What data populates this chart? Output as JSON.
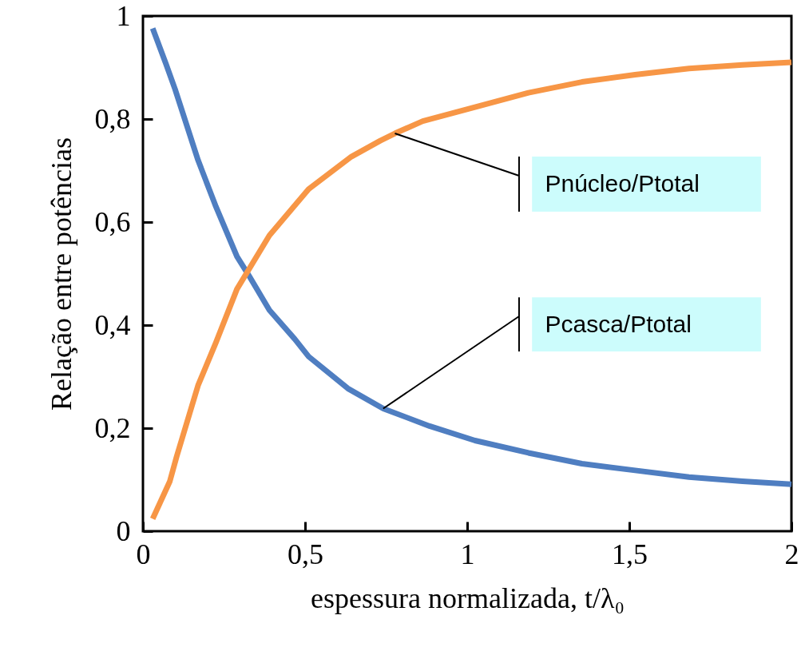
{
  "chart_data": {
    "type": "line",
    "xlabel": "espessura normalizada, t/λ₀",
    "ylabel": "Relação entre potências",
    "xlim": [
      0,
      2
    ],
    "ylim": [
      0,
      1
    ],
    "xticks": [
      0,
      {
        "value": 0.5,
        "label": "0,5"
      },
      1,
      {
        "value": 1.5,
        "label": "1,5"
      },
      2
    ],
    "yticks": [
      0,
      {
        "value": 0.2,
        "label": "0,2"
      },
      {
        "value": 0.4,
        "label": "0,4"
      },
      {
        "value": 0.6,
        "label": "0,6"
      },
      {
        "value": 0.8,
        "label": "0,8"
      },
      1
    ],
    "grid": false,
    "marker": "none",
    "line_style": "solid",
    "annotations": [
      {
        "text": "Pcasca/Ptotal",
        "x": 0.741,
        "y": 0.238
      },
      {
        "text": "Pnúcleo/Ptotal",
        "x": 0.777,
        "y": 0.772
      }
    ],
    "series": [
      {
        "color": "#4f7ec1",
        "x": [
          0.03,
          0.071,
          0.099,
          0.17,
          0.225,
          0.29,
          0.325,
          0.39,
          0.468,
          0.511,
          0.632,
          0.741,
          0.884,
          1.024,
          1.189,
          1.354,
          1.518,
          1.684,
          1.849,
          2.0
        ],
        "values": [
          0.976,
          0.907,
          0.858,
          0.72,
          0.63,
          0.533,
          0.498,
          0.429,
          0.373,
          0.339,
          0.277,
          0.238,
          0.204,
          0.176,
          0.152,
          0.131,
          0.118,
          0.105,
          0.097,
          0.091
        ]
      },
      {
        "color": "#f79646",
        "x": [
          0.03,
          0.083,
          0.104,
          0.17,
          0.225,
          0.29,
          0.39,
          0.511,
          0.643,
          0.732,
          0.777,
          0.863,
          1.024,
          1.189,
          1.354,
          1.518,
          1.684,
          1.849,
          2.0
        ],
        "values": [
          0.024,
          0.097,
          0.145,
          0.283,
          0.366,
          0.47,
          0.574,
          0.664,
          0.727,
          0.758,
          0.772,
          0.796,
          0.823,
          0.851,
          0.872,
          0.886,
          0.898,
          0.905,
          0.91
        ]
      }
    ]
  }
}
